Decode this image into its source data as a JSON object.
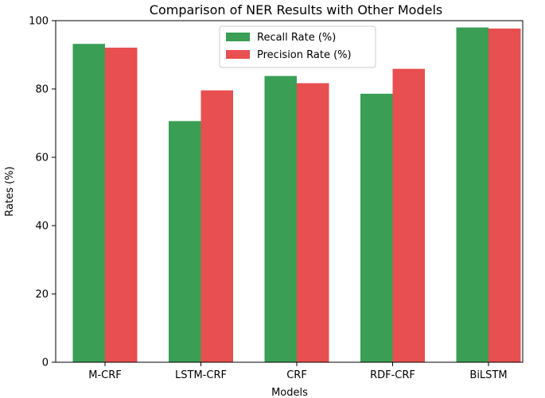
{
  "chart_data": {
    "type": "bar",
    "title": "Comparison of NER Results with Other Models",
    "xlabel": "Models",
    "ylabel": "Rates (%)",
    "ylim": [
      0,
      100
    ],
    "yticks": [
      0,
      20,
      40,
      60,
      80,
      100
    ],
    "categories": [
      "M-CRF",
      "LSTM-CRF",
      "CRF",
      "RDF-CRF",
      "BiLSTM"
    ],
    "series": [
      {
        "name": "Recall Rate (%)",
        "color": "#3a9e55",
        "values": [
          93.2,
          70.6,
          83.8,
          78.6,
          98.0
        ]
      },
      {
        "name": "Precision Rate (%)",
        "color": "#e84f50",
        "values": [
          92.1,
          79.6,
          81.7,
          85.9,
          97.7
        ]
      }
    ],
    "legend": "top-center",
    "grid": false
  }
}
